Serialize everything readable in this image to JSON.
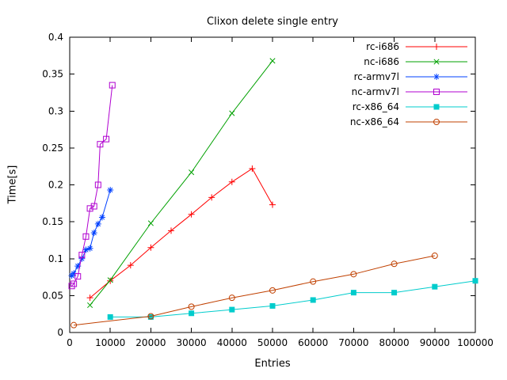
{
  "chart_data": {
    "type": "line",
    "title": "Clixon delete single entry",
    "xlabel": "Entries",
    "ylabel": "Time[s]",
    "xlim": [
      0,
      100000
    ],
    "ylim": [
      0,
      0.4
    ],
    "xticks": [
      0,
      10000,
      20000,
      30000,
      40000,
      50000,
      60000,
      70000,
      80000,
      90000,
      100000
    ],
    "yticks": [
      0,
      0.05,
      0.1,
      0.15,
      0.2,
      0.25,
      0.3,
      0.35,
      0.4
    ],
    "grid": false,
    "legend_position": "top-right-inside",
    "border_color": "#000000",
    "series": [
      {
        "name": "rc-i686",
        "color": "#ff0000",
        "marker": "plus",
        "x": [
          5000,
          10000,
          15000,
          20000,
          25000,
          30000,
          35000,
          40000,
          45000,
          50000
        ],
        "y": [
          0.047,
          0.07,
          0.091,
          0.115,
          0.138,
          0.16,
          0.183,
          0.204,
          0.222,
          0.173
        ]
      },
      {
        "name": "nc-i686",
        "color": "#00a000",
        "marker": "cross",
        "x": [
          5000,
          10000,
          20000,
          30000,
          40000,
          50000
        ],
        "y": [
          0.037,
          0.071,
          0.148,
          0.217,
          0.297,
          0.368
        ]
      },
      {
        "name": "rc-armv7l",
        "color": "#0040ff",
        "marker": "asterisk",
        "x": [
          500,
          1000,
          2000,
          3000,
          4000,
          5000,
          6000,
          7000,
          8000,
          10000
        ],
        "y": [
          0.077,
          0.08,
          0.09,
          0.1,
          0.112,
          0.114,
          0.135,
          0.147,
          0.156,
          0.193
        ]
      },
      {
        "name": "nc-armv7l",
        "color": "#b000d0",
        "marker": "square-open",
        "x": [
          500,
          1000,
          2000,
          3000,
          4000,
          5000,
          6000,
          7000,
          7500,
          9000,
          10500
        ],
        "y": [
          0.063,
          0.066,
          0.076,
          0.105,
          0.13,
          0.168,
          0.171,
          0.2,
          0.255,
          0.262,
          0.335
        ]
      },
      {
        "name": "rc-x86_64",
        "color": "#00cccc",
        "marker": "square-filled",
        "x": [
          10000,
          20000,
          30000,
          40000,
          50000,
          60000,
          70000,
          80000,
          90000,
          100000
        ],
        "y": [
          0.021,
          0.021,
          0.026,
          0.031,
          0.036,
          0.044,
          0.054,
          0.054,
          0.062,
          0.07
        ]
      },
      {
        "name": "nc-x86_64",
        "color": "#c04000",
        "marker": "circle-open",
        "x": [
          1000,
          20000,
          30000,
          40000,
          50000,
          60000,
          70000,
          80000,
          90000
        ],
        "y": [
          0.01,
          0.022,
          0.035,
          0.047,
          0.057,
          0.069,
          0.079,
          0.093,
          0.104
        ]
      }
    ]
  }
}
